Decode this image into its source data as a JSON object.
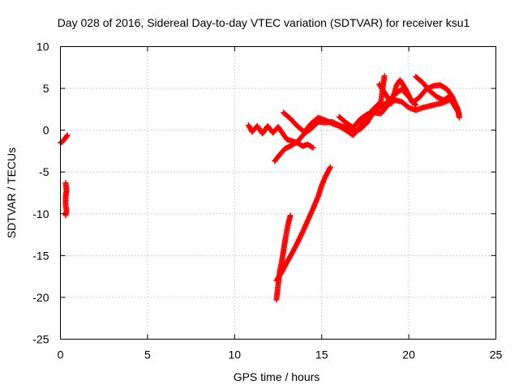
{
  "chart_data": {
    "type": "scatter",
    "title": "Day 028 of 2016, Sidereal Day-to-day VTEC variation (SDTVAR) for receiver ksu1",
    "xlabel": "GPS time / hours",
    "ylabel": "SDTVAR / TECUs",
    "xlim": [
      0,
      25
    ],
    "ylim": [
      -25,
      10
    ],
    "xticks": [
      0,
      5,
      10,
      15,
      20,
      25
    ],
    "yticks": [
      -25,
      -20,
      -15,
      -10,
      -5,
      0,
      5,
      10
    ],
    "grid": true,
    "legend": "none",
    "marker": "plus",
    "color": "#ff0000",
    "series": [
      {
        "name": "segment-1",
        "points": [
          [
            0.0,
            -1.5
          ],
          [
            0.1,
            -1.4
          ],
          [
            0.3,
            -0.9
          ],
          [
            0.4,
            -0.6
          ]
        ]
      },
      {
        "name": "segment-2",
        "points": [
          [
            0.3,
            -6.3
          ],
          [
            0.35,
            -7.2
          ],
          [
            0.3,
            -8.0
          ],
          [
            0.3,
            -9.0
          ],
          [
            0.35,
            -9.6
          ],
          [
            0.3,
            -10.2
          ]
        ]
      },
      {
        "name": "segment-3",
        "points": [
          [
            10.8,
            0.6
          ],
          [
            11.0,
            -0.2
          ],
          [
            11.3,
            0.5
          ],
          [
            11.6,
            -0.4
          ],
          [
            11.9,
            0.5
          ],
          [
            12.2,
            -0.3
          ],
          [
            12.5,
            0.4
          ],
          [
            12.8,
            -0.5
          ],
          [
            13.0,
            -1.1
          ],
          [
            13.3,
            -1.3
          ],
          [
            13.6,
            -1.5
          ],
          [
            13.9,
            -1.9
          ],
          [
            14.2,
            -1.7
          ],
          [
            14.5,
            -2.1
          ]
        ]
      },
      {
        "name": "segment-4",
        "points": [
          [
            12.3,
            -3.7
          ],
          [
            12.6,
            -2.9
          ],
          [
            12.9,
            -2.2
          ],
          [
            13.2,
            -1.9
          ],
          [
            13.6,
            -1.4
          ],
          [
            14.0,
            -0.4
          ],
          [
            14.4,
            0.2
          ],
          [
            14.8,
            1.0
          ],
          [
            15.2,
            0.9
          ],
          [
            15.6,
            1.0
          ],
          [
            16.0,
            0.6
          ],
          [
            16.4,
            0.3
          ],
          [
            16.8,
            -0.2
          ],
          [
            17.2,
            0.1
          ],
          [
            17.6,
            0.9
          ],
          [
            18.0,
            2.2
          ],
          [
            18.4,
            2.8
          ],
          [
            18.8,
            3.4
          ],
          [
            19.2,
            4.3
          ],
          [
            19.6,
            4.9
          ],
          [
            20.0,
            4.0
          ],
          [
            20.4,
            3.0
          ]
        ]
      },
      {
        "name": "segment-5",
        "points": [
          [
            12.8,
            2.1
          ],
          [
            13.2,
            1.4
          ],
          [
            13.6,
            0.5
          ],
          [
            14.0,
            -0.2
          ],
          [
            14.4,
            0.8
          ],
          [
            14.8,
            1.5
          ],
          [
            15.2,
            1.2
          ],
          [
            15.6,
            0.8
          ],
          [
            16.0,
            0.5
          ],
          [
            16.4,
            0.0
          ],
          [
            16.8,
            -0.6
          ],
          [
            17.2,
            0.4
          ],
          [
            17.6,
            1.7
          ],
          [
            18.0,
            2.6
          ],
          [
            18.4,
            3.4
          ],
          [
            18.6,
            6.5
          ]
        ]
      },
      {
        "name": "segment-6",
        "points": [
          [
            16.0,
            1.6
          ],
          [
            16.4,
            0.9
          ],
          [
            16.8,
            0.3
          ],
          [
            17.2,
            1.3
          ],
          [
            17.6,
            1.9
          ],
          [
            18.0,
            2.1
          ],
          [
            18.4,
            2.0
          ],
          [
            18.8,
            3.0
          ],
          [
            19.2,
            3.6
          ],
          [
            19.6,
            3.4
          ],
          [
            20.0,
            2.7
          ],
          [
            20.4,
            2.4
          ],
          [
            20.8,
            2.7
          ],
          [
            21.2,
            2.9
          ],
          [
            21.6,
            3.1
          ],
          [
            22.0,
            3.3
          ],
          [
            22.4,
            3.7
          ],
          [
            22.6,
            3.4
          ],
          [
            22.8,
            2.6
          ],
          [
            22.9,
            1.5
          ]
        ]
      },
      {
        "name": "segment-7",
        "points": [
          [
            18.3,
            5.5
          ],
          [
            18.7,
            4.2
          ],
          [
            19.0,
            3.2
          ],
          [
            19.3,
            5.4
          ],
          [
            19.5,
            6.0
          ],
          [
            19.8,
            5.0
          ],
          [
            20.2,
            3.3
          ],
          [
            20.6,
            3.9
          ],
          [
            21.0,
            4.9
          ],
          [
            21.4,
            5.3
          ],
          [
            21.8,
            5.4
          ],
          [
            22.2,
            4.9
          ],
          [
            22.5,
            4.0
          ],
          [
            22.7,
            3.0
          ],
          [
            22.9,
            1.9
          ]
        ]
      },
      {
        "name": "segment-8",
        "points": [
          [
            20.4,
            6.4
          ],
          [
            20.8,
            5.7
          ],
          [
            21.2,
            4.7
          ],
          [
            21.6,
            4.0
          ],
          [
            22.0,
            3.6
          ],
          [
            22.3,
            4.0
          ],
          [
            22.6,
            3.0
          ],
          [
            22.8,
            2.3
          ]
        ]
      },
      {
        "name": "segment-9",
        "points": [
          [
            12.4,
            -20.3
          ],
          [
            12.5,
            -18.5
          ],
          [
            12.6,
            -16.8
          ],
          [
            12.7,
            -15.8
          ],
          [
            12.8,
            -14.5
          ],
          [
            12.9,
            -13.2
          ],
          [
            13.0,
            -12.0
          ],
          [
            13.1,
            -11.0
          ],
          [
            13.2,
            -10.2
          ]
        ]
      },
      {
        "name": "segment-10",
        "points": [
          [
            12.4,
            -18.0
          ],
          [
            12.7,
            -17.0
          ],
          [
            13.0,
            -15.8
          ],
          [
            13.3,
            -14.7
          ],
          [
            13.6,
            -13.5
          ],
          [
            13.9,
            -12.2
          ],
          [
            14.2,
            -10.8
          ],
          [
            14.5,
            -9.4
          ],
          [
            14.8,
            -7.9
          ],
          [
            15.0,
            -6.6
          ],
          [
            15.2,
            -5.6
          ],
          [
            15.5,
            -4.4
          ]
        ]
      }
    ]
  }
}
